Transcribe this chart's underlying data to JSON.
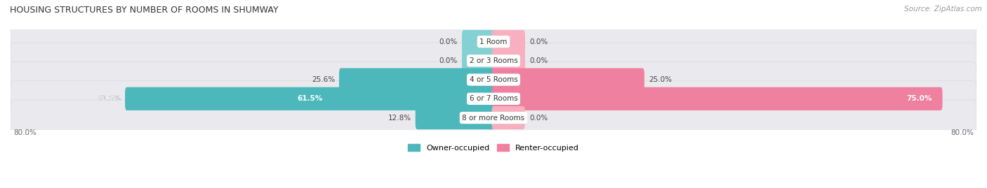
{
  "title": "HOUSING STRUCTURES BY NUMBER OF ROOMS IN SHUMWAY",
  "source": "Source: ZipAtlas.com",
  "categories": [
    "1 Room",
    "2 or 3 Rooms",
    "4 or 5 Rooms",
    "6 or 7 Rooms",
    "8 or more Rooms"
  ],
  "owner_values": [
    0.0,
    0.0,
    25.6,
    61.5,
    12.8
  ],
  "renter_values": [
    0.0,
    0.0,
    25.0,
    75.0,
    0.0
  ],
  "owner_color": "#4db8bc",
  "renter_color": "#f080a0",
  "owner_color_light": "#85d0d3",
  "renter_color_light": "#f8b0c0",
  "row_bg_color": "#eaeaee",
  "row_border_color": "#d8d8de",
  "label_bg_color": "#ffffff",
  "axis_max": 80.0,
  "left_axis_label": "80.0%",
  "right_axis_label": "80.0%",
  "figsize": [
    14.06,
    2.69
  ],
  "dpi": 100,
  "small_bar_size": 5.0
}
